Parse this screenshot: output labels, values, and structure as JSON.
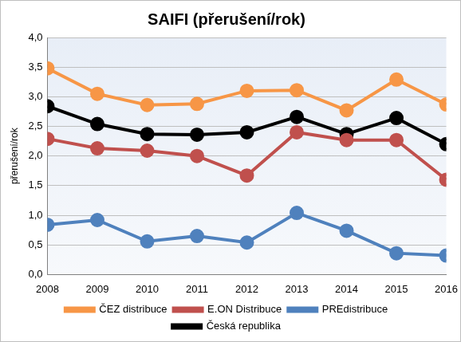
{
  "chart_data": {
    "type": "line",
    "title": "SAIFI (přerušení/rok)",
    "y_label": "přerušení/rok",
    "categories": [
      "2008",
      "2009",
      "2010",
      "2011",
      "2012",
      "2013",
      "2014",
      "2015",
      "2016"
    ],
    "series": [
      {
        "name": "ČEZ distribuce",
        "color": "#f79646",
        "values": [
          3.48,
          3.05,
          2.86,
          2.88,
          3.1,
          3.11,
          2.77,
          3.29,
          2.87
        ]
      },
      {
        "name": "E.ON Distribuce",
        "color": "#c0504d",
        "values": [
          2.29,
          2.13,
          2.09,
          2.0,
          1.67,
          2.4,
          2.27,
          2.27,
          1.6
        ]
      },
      {
        "name": "PREdistribuce",
        "color": "#4f81bd",
        "values": [
          0.84,
          0.92,
          0.56,
          0.65,
          0.54,
          1.04,
          0.74,
          0.36,
          0.32
        ]
      },
      {
        "name": "Česká republika",
        "color": "#000000",
        "values": [
          2.84,
          2.54,
          2.37,
          2.36,
          2.4,
          2.66,
          2.37,
          2.64,
          2.2
        ]
      }
    ],
    "ylim": [
      0,
      4
    ],
    "yticks": [
      {
        "value": 0,
        "label": "0,0"
      },
      {
        "value": 0.5,
        "label": "0,5"
      },
      {
        "value": 1,
        "label": "1,0"
      },
      {
        "value": 1.5,
        "label": "1,5"
      },
      {
        "value": 2,
        "label": "2,0"
      },
      {
        "value": 2.5,
        "label": "2,5"
      },
      {
        "value": 3,
        "label": "3,0"
      },
      {
        "value": 3.5,
        "label": "3,5"
      },
      {
        "value": 4,
        "label": "4,0"
      }
    ],
    "grid": true,
    "legend": "bottom",
    "marker": "circle",
    "line_style": "solid"
  }
}
